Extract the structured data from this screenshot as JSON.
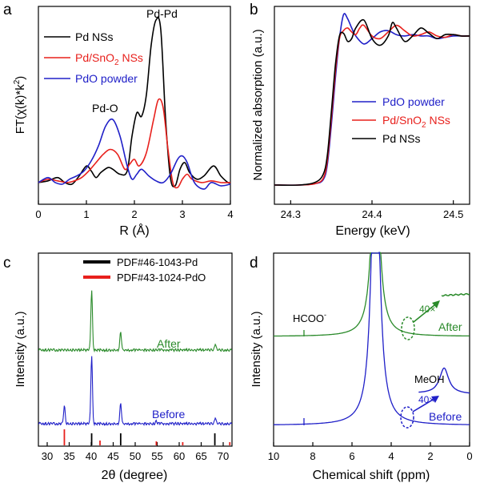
{
  "colors": {
    "black": "#000000",
    "red": "#e8201c",
    "blue": "#2020c8",
    "green": "#2a8a2a"
  },
  "chart_data": [
    {
      "panel": "a",
      "type": "line",
      "xlabel": "R (Å)",
      "ylabel": "FT(χ(k)*k²)",
      "ylabel_parts": {
        "main": "FT(χ(k)*k",
        "sup": "2",
        "tail": ")"
      },
      "xlim": [
        0,
        4
      ],
      "ylim": [
        0,
        1
      ],
      "xticks": [
        "0",
        "1",
        "2",
        "3",
        "4"
      ],
      "legend_position": "top-left",
      "annotations": [
        "Pd-Pd",
        "Pd-O"
      ],
      "series": [
        {
          "name": "Pd NSs",
          "color": "#000000",
          "x": [
            0,
            0.2,
            0.4,
            0.55,
            0.7,
            0.85,
            1.0,
            1.1,
            1.2,
            1.3,
            1.45,
            1.55,
            1.7,
            1.85,
            1.95,
            2.05,
            2.15,
            2.25,
            2.35,
            2.45,
            2.55,
            2.65,
            2.75,
            2.85,
            2.95,
            3.05,
            3.15,
            3.3,
            3.45,
            3.65,
            3.8,
            3.95,
            4.0
          ],
          "y": [
            0.02,
            0.03,
            0.05,
            0.02,
            0.01,
            0.06,
            0.12,
            0.09,
            0.05,
            0.08,
            0.11,
            0.1,
            0.07,
            0.09,
            0.3,
            0.44,
            0.42,
            0.55,
            0.85,
            1.0,
            0.94,
            0.4,
            0.05,
            0.0,
            0.1,
            0.14,
            0.08,
            0.04,
            0.06,
            0.12,
            0.06,
            0.02,
            0.02
          ]
        },
        {
          "name": "Pd/SnO₂ NSs",
          "color": "#e8201c",
          "x": [
            0,
            0.2,
            0.4,
            0.6,
            0.75,
            0.9,
            1.05,
            1.2,
            1.35,
            1.5,
            1.65,
            1.8,
            1.9,
            2.0,
            2.1,
            2.25,
            2.4,
            2.5,
            2.6,
            2.7,
            2.8,
            2.9,
            3.0,
            3.1,
            3.2,
            3.4,
            3.6,
            3.8,
            4.0
          ],
          "y": [
            0.02,
            0.04,
            0.03,
            0.02,
            0.03,
            0.05,
            0.09,
            0.14,
            0.19,
            0.22,
            0.19,
            0.1,
            0.13,
            0.16,
            0.12,
            0.2,
            0.4,
            0.52,
            0.47,
            0.22,
            0.02,
            -0.01,
            0.04,
            0.07,
            0.04,
            0.02,
            0.03,
            0.02,
            0.02
          ]
        },
        {
          "name": "PdO powder",
          "color": "#2020c8",
          "x": [
            0,
            0.2,
            0.35,
            0.5,
            0.65,
            0.8,
            0.95,
            1.1,
            1.25,
            1.4,
            1.55,
            1.7,
            1.85,
            1.95,
            2.05,
            2.15,
            2.3,
            2.45,
            2.6,
            2.75,
            2.9,
            3.0,
            3.1,
            3.25,
            3.45,
            3.6,
            3.8,
            4.0
          ],
          "y": [
            0.02,
            0.05,
            0.02,
            0.01,
            0.04,
            0.06,
            0.09,
            0.15,
            0.24,
            0.36,
            0.4,
            0.3,
            0.12,
            0.04,
            0.07,
            0.1,
            0.06,
            0.03,
            0.02,
            0.07,
            0.16,
            0.18,
            0.14,
            0.02,
            -0.02,
            0.02,
            0.0,
            0.01
          ]
        }
      ]
    },
    {
      "panel": "b",
      "type": "line",
      "xlabel": "Energy (keV)",
      "ylabel": "Normalized absorption (a.u.)",
      "xlim": [
        24.28,
        24.52
      ],
      "ylim": [
        0,
        1.3
      ],
      "xticks": [
        "24.3",
        "24.4",
        "24.5"
      ],
      "legend_position": "center-right",
      "series": [
        {
          "name": "PdO powder",
          "color": "#2020c8",
          "x": [
            24.28,
            24.31,
            24.33,
            24.34,
            24.345,
            24.35,
            24.355,
            24.36,
            24.365,
            24.37,
            24.375,
            24.38,
            24.39,
            24.4,
            24.41,
            24.42,
            24.43,
            24.44,
            24.45,
            24.46,
            24.47,
            24.48,
            24.49,
            24.5,
            24.51,
            24.52
          ],
          "y": [
            0.0,
            0.0,
            0.01,
            0.04,
            0.15,
            0.45,
            0.8,
            1.1,
            1.28,
            1.25,
            1.18,
            1.12,
            1.06,
            1.1,
            1.15,
            1.16,
            1.13,
            1.12,
            1.13,
            1.12,
            1.12,
            1.1,
            1.11,
            1.12,
            1.12,
            1.12
          ]
        },
        {
          "name": "Pd/SnO₂ NSs",
          "color": "#e8201c",
          "x": [
            24.28,
            24.31,
            24.33,
            24.34,
            24.345,
            24.35,
            24.355,
            24.36,
            24.365,
            24.37,
            24.375,
            24.38,
            24.385,
            24.39,
            24.4,
            24.41,
            24.42,
            24.43,
            24.44,
            24.45,
            24.46,
            24.47,
            24.48,
            24.49,
            24.5,
            24.51,
            24.52
          ],
          "y": [
            0.0,
            0.0,
            0.01,
            0.05,
            0.18,
            0.5,
            0.85,
            1.1,
            1.16,
            1.18,
            1.15,
            1.13,
            1.18,
            1.2,
            1.12,
            1.1,
            1.15,
            1.2,
            1.16,
            1.12,
            1.13,
            1.15,
            1.12,
            1.11,
            1.13,
            1.12,
            1.12
          ]
        },
        {
          "name": "Pd NSs",
          "color": "#000000",
          "x": [
            24.28,
            24.31,
            24.33,
            24.34,
            24.345,
            24.35,
            24.355,
            24.36,
            24.365,
            24.37,
            24.375,
            24.38,
            24.39,
            24.4,
            24.41,
            24.42,
            24.425,
            24.43,
            24.44,
            24.45,
            24.46,
            24.47,
            24.48,
            24.49,
            24.5,
            24.51,
            24.52
          ],
          "y": [
            0.0,
            0.0,
            0.02,
            0.08,
            0.22,
            0.55,
            0.9,
            1.12,
            1.14,
            1.08,
            1.1,
            1.18,
            1.24,
            1.1,
            1.05,
            1.12,
            1.22,
            1.18,
            1.08,
            1.12,
            1.18,
            1.14,
            1.1,
            1.13,
            1.13,
            1.12,
            1.12
          ]
        }
      ]
    },
    {
      "panel": "c",
      "type": "line",
      "xlabel": "2θ (degree)",
      "ylabel": "Intensity (a.u.)",
      "xlim": [
        28,
        72
      ],
      "xticks": [
        "30",
        "35",
        "40",
        "45",
        "50",
        "55",
        "60",
        "65",
        "70"
      ],
      "legend_position": "top-center",
      "legend": [
        "PDF#46-1043-Pd",
        "PDF#43-1024-PdO"
      ],
      "series": [
        {
          "name": "After",
          "color": "#2a8a2a",
          "peaks": [
            [
              40.1,
              75
            ],
            [
              46.7,
              22
            ],
            [
              68.2,
              8
            ]
          ]
        },
        {
          "name": "Before",
          "color": "#2020c8",
          "peaks": [
            [
              33.9,
              22
            ],
            [
              40.1,
              85
            ],
            [
              46.7,
              25
            ],
            [
              54.8,
              3
            ],
            [
              68.2,
              8
            ]
          ]
        }
      ],
      "reference_Pd": [
        40.1,
        46.7,
        68.1
      ],
      "reference_PdO": [
        33.9,
        42.0,
        54.8,
        60.8,
        71.5
      ]
    },
    {
      "panel": "d",
      "type": "line",
      "xlabel": "Chemical shift (ppm)",
      "ylabel": "Intensity (a.u.)",
      "xlim": [
        10,
        0
      ],
      "xticks": [
        "10",
        "8",
        "6",
        "4",
        "2",
        "0"
      ],
      "annotations": [
        "HCOO⁻",
        "MeOH",
        "40×",
        "40×"
      ],
      "labels": {
        "hcoo": "HCOO",
        "hcoo_sup": "-",
        "meoh": "MeOH",
        "mag": "40×"
      },
      "series": [
        {
          "name": "After",
          "color": "#2a8a2a",
          "peaks_ppm": [
            8.45,
            4.8
          ]
        },
        {
          "name": "Before",
          "color": "#2020c8",
          "peaks_ppm": [
            8.45,
            4.8,
            1.3
          ]
        }
      ]
    }
  ],
  "panel_labels": [
    "a",
    "b",
    "c",
    "d"
  ],
  "legend_a": {
    "black": "Pd NSs",
    "red_main": "Pd/SnO",
    "red_sub": "2",
    "red_tail": " NSs",
    "blue": "PdO powder"
  },
  "legend_b": {
    "blue": "PdO powder",
    "red_main": "Pd/SnO",
    "red_sub": "2",
    "red_tail": " NSs",
    "black": "Pd NSs"
  },
  "annot_a": {
    "pdpd": "Pd-Pd",
    "pdo": "Pd-O"
  },
  "annot_c": {
    "after": "After",
    "before": "Before"
  },
  "annot_d": {
    "after": "After",
    "before": "Before"
  }
}
